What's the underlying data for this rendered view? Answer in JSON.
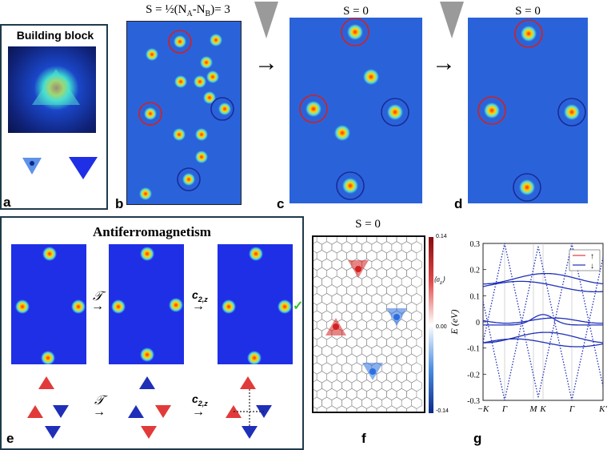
{
  "panel_a": {
    "letter": "a",
    "title": "Building block"
  },
  "panel_b": {
    "letter": "b",
    "title_prefix": "S = ½(N",
    "sub_a": "A",
    "mid": "-N",
    "sub_b": "B",
    "suffix": ")= 3"
  },
  "panel_c": {
    "letter": "c",
    "title": "S = 0"
  },
  "panel_d": {
    "letter": "d",
    "title": "S = 0"
  },
  "panel_e": {
    "letter": "e",
    "title": "Antiferromagnetism",
    "op1": "𝒯",
    "op2": "c",
    "op2_sub": "2,z",
    "check": "✓"
  },
  "panel_f": {
    "letter": "f",
    "title": "S = 0",
    "cbar_max": "0.14",
    "cbar_mid": "0.00",
    "cbar_min": "-0.14",
    "cbar_label": "⟨σ_z⟩"
  },
  "panel_g": {
    "letter": "g",
    "ylabel": "E (eV)",
    "yticks": [
      "0.3",
      "0.2",
      "0.1",
      "0",
      "-0.1",
      "-0.2",
      "-0.3"
    ],
    "xticks": [
      "−K",
      "Γ",
      "M",
      "K",
      "Γ",
      "K′"
    ],
    "legend": [
      "↑",
      "↓"
    ]
  },
  "colors": {
    "stm_blue": "#2a63d9",
    "red_circle": "#d42020",
    "blue_circle": "#1a2a9a",
    "up": "#e23a3a",
    "down": "#1f2fb8"
  }
}
